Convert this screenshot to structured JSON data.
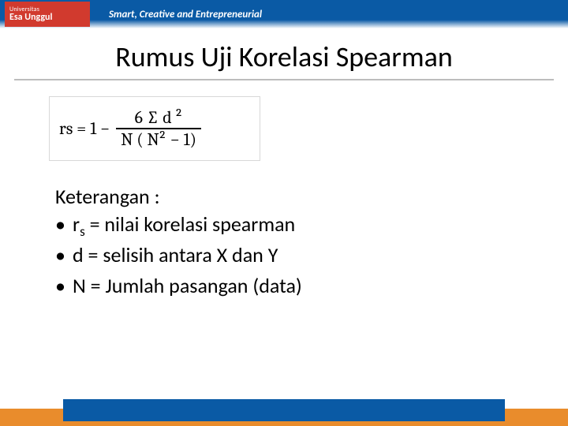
{
  "header": {
    "logo_top": "Universitas",
    "logo_main": "Esa Unggul",
    "tagline": "Smart, Creative and Entrepreneurial"
  },
  "title": "Rumus Uji Korelasi Spearman",
  "formula": {
    "lhs": "rs = 1 −",
    "numerator": "6 ∑ d ²",
    "denominator": "N ( N² − 1)"
  },
  "explanation": {
    "heading": "Keterangan :",
    "items": [
      {
        "var": "r",
        "sub": "s",
        "desc": " = nilai korelasi spearman"
      },
      {
        "var": "d",
        "sub": "",
        "desc": " = selisih antara X dan Y"
      },
      {
        "var": "N",
        "sub": "",
        "desc": " = Jumlah pasangan (data)"
      }
    ]
  },
  "colors": {
    "header_blue": "#0a5aa5",
    "logo_red": "#d13a2e",
    "footer_orange": "#e98c2c",
    "rule_gray": "#bdbdbd"
  }
}
